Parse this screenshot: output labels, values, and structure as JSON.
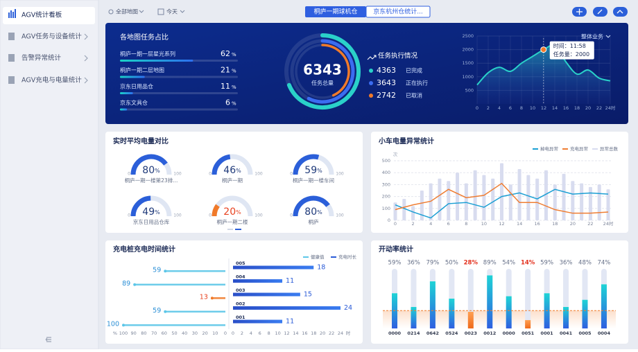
{
  "sidebar": {
    "items": [
      "AGV统计看板",
      "AGV任务与设备统计",
      "告警异常统计",
      "AGV充电与电量统计"
    ]
  },
  "toolbar": {
    "map": "全部地图",
    "date": "今天",
    "tabs": [
      "桐庐一期球机仓",
      "京东杭州仓统计..."
    ]
  },
  "overview": {
    "share": {
      "title": "各地图任务占比",
      "unit": "%",
      "items": [
        {
          "name": "桐庐一期一层星光系列",
          "value": 62
        },
        {
          "name": "桐庐一期二层地图",
          "value": 21
        },
        {
          "name": "京东日用品仓",
          "value": 11
        },
        {
          "name": "京东文具仓",
          "value": 6
        }
      ]
    },
    "total": {
      "value": 6343,
      "label": "任务总量"
    },
    "status": {
      "title": "任务执行情况",
      "items": [
        {
          "value": 4363,
          "label": "已完成",
          "color": "#2ad1c9"
        },
        {
          "value": 3643,
          "label": "正在执行",
          "color": "#3b6cf0"
        },
        {
          "value": 2742,
          "label": "已取消",
          "color": "#f07a2a"
        }
      ]
    },
    "trend": {
      "type": "area",
      "selector": "整体业务",
      "x": [
        0,
        2,
        4,
        6,
        8,
        10,
        12,
        14,
        16,
        18,
        20,
        22,
        24
      ],
      "values": [
        700,
        1150,
        1350,
        1200,
        1500,
        1750,
        2000,
        2150,
        1550,
        1100,
        1250,
        950,
        850
      ],
      "xlim": [
        0,
        24
      ],
      "ylim": [
        0,
        2500
      ],
      "xticks": [
        0,
        2,
        4,
        6,
        8,
        10,
        12,
        14,
        16,
        18,
        20,
        22,
        {
          "value": 24,
          "label": "24时"
        }
      ],
      "yticks": [
        500,
        1000,
        1500,
        2000,
        2500
      ],
      "color": "#2ad1c9",
      "tooltip": {
        "x": 11.97,
        "value": 2000,
        "lines": [
          "时间：11:58",
          "任务量：2000"
        ]
      }
    }
  },
  "battery": {
    "title": "实时平均电量对比",
    "unit": "%",
    "min": 0,
    "max": 100,
    "gauges": [
      {
        "name": "桐庐一期一楼第23排...",
        "value": 80,
        "color": "#2b5fd9"
      },
      {
        "name": "桐庐一期",
        "value": 46,
        "color": "#2b5fd9"
      },
      {
        "name": "桐庐一期一楼车间",
        "value": 59,
        "color": "#2b5fd9"
      },
      {
        "name": "京东日用品仓库",
        "value": 49,
        "color": "#2b5fd9"
      },
      {
        "name": "桐庐一期二楼",
        "value": 20,
        "color": "#f07a2a"
      },
      {
        "name": "桐庐",
        "value": 80,
        "color": "#2b5fd9"
      }
    ]
  },
  "anomaly": {
    "type": "bar-line",
    "title": "小车电量异常统计",
    "ylabel": "次",
    "xlim": [
      0,
      24
    ],
    "ylim": [
      0,
      500
    ],
    "yticks": [
      0,
      100,
      200,
      300,
      400,
      500
    ],
    "xticks": [
      0,
      2,
      4,
      6,
      8,
      10,
      12,
      14,
      16,
      18,
      20,
      22,
      {
        "value": 24,
        "label": "24时"
      }
    ],
    "bars": {
      "name": "异常总数",
      "color": "#d8dcef",
      "x": [
        0,
        1,
        2,
        3,
        4,
        5,
        6,
        7,
        8,
        9,
        10,
        11,
        12,
        13,
        14,
        15,
        16,
        17,
        18,
        19,
        20,
        21,
        22,
        23,
        24
      ],
      "values": [
        150,
        180,
        120,
        250,
        310,
        350,
        330,
        400,
        310,
        420,
        380,
        350,
        480,
        300,
        430,
        380,
        350,
        420,
        300,
        390,
        330,
        310,
        280,
        300,
        260
      ]
    },
    "series": [
      {
        "name": "掉电异常",
        "color": "#1a9fd4",
        "x": [
          0,
          2,
          4,
          6,
          8,
          10,
          12,
          14,
          16,
          18,
          20,
          22,
          24
        ],
        "values": [
          130,
          70,
          20,
          140,
          150,
          110,
          200,
          230,
          180,
          260,
          220,
          230,
          220
        ]
      },
      {
        "name": "充电异常",
        "color": "#ef7d32",
        "x": [
          0,
          2,
          4,
          6,
          8,
          10,
          12,
          14,
          16,
          18,
          20,
          22,
          24
        ],
        "values": [
          90,
          130,
          160,
          260,
          190,
          210,
          310,
          150,
          150,
          90,
          60,
          60,
          70
        ]
      }
    ]
  },
  "charging": {
    "title": "充电桩充电时间统计",
    "health": {
      "name": "健康值",
      "color": "#5cc6e8",
      "unit": "%",
      "xlim": [
        100,
        0
      ],
      "xticks": [
        100,
        90,
        80,
        70,
        60,
        50,
        40,
        30,
        20,
        10,
        0
      ]
    },
    "duration": {
      "name": "充电时长",
      "color": "#2a5bd7",
      "unit": "时",
      "xlim": [
        0,
        24
      ],
      "xticks": [
        0,
        2,
        4,
        6,
        8,
        10,
        12,
        14,
        16,
        18,
        20,
        22,
        24
      ]
    },
    "rows": [
      {
        "name": "005",
        "health": 59,
        "duration": 18,
        "health_color": "#2a8fd6"
      },
      {
        "name": "004",
        "health": 89,
        "duration": 11,
        "health_color": "#2a8fd6"
      },
      {
        "name": "003",
        "health": 13,
        "duration": 15,
        "health_color": "#e8421f"
      },
      {
        "name": "002",
        "health": 59,
        "duration": 24,
        "health_color": "#2a8fd6"
      },
      {
        "name": "001",
        "health": 100,
        "duration": 11,
        "health_color": "#2a8fd6"
      }
    ]
  },
  "uptime": {
    "type": "bar",
    "title": "开动率统计",
    "categories": [
      "0000",
      "0214",
      "0642",
      "0524",
      "0023",
      "0012",
      "0000",
      "0051",
      "0001",
      "0041",
      "0005",
      "0004"
    ],
    "values": [
      59,
      36,
      79,
      50,
      28,
      89,
      54,
      14,
      59,
      36,
      48,
      74
    ],
    "value_labels": [
      "59%",
      "36%",
      "79%",
      "50%",
      "28%",
      "89%",
      "54%",
      "14%",
      "59%",
      "36%",
      "48%",
      "74%"
    ],
    "ylim": [
      0,
      100
    ],
    "threshold": 30,
    "color": "#1fc1d6",
    "alert_color": "#f07a2a"
  }
}
